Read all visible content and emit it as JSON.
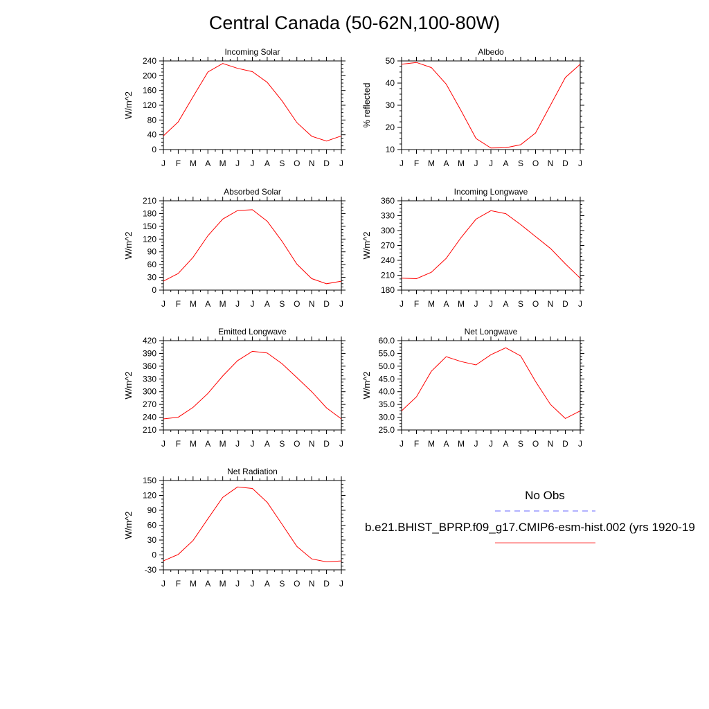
{
  "title": "Central Canada (50-62N,100-80W)",
  "chart_data": [
    {
      "type": "line",
      "title": "Incoming Solar",
      "ylabel": "W/m^2",
      "ylim": [
        0,
        240
      ],
      "yticks": [
        "0",
        "40",
        "80",
        "120",
        "160",
        "200",
        "240"
      ],
      "x": [
        "J",
        "F",
        "M",
        "A",
        "M",
        "J",
        "J",
        "A",
        "S",
        "O",
        "N",
        "D",
        "J"
      ],
      "series": [
        {
          "values": [
            37,
            75,
            143,
            210,
            233,
            220,
            211,
            182,
            132,
            73,
            36,
            23,
            37
          ],
          "color": "#ff0000"
        }
      ]
    },
    {
      "type": "line",
      "title": "Albedo",
      "ylabel": "% reflected",
      "ylim": [
        10,
        50
      ],
      "yticks": [
        "10",
        "20",
        "30",
        "40",
        "50"
      ],
      "x": [
        "J",
        "F",
        "M",
        "A",
        "M",
        "J",
        "J",
        "A",
        "S",
        "O",
        "N",
        "D",
        "J"
      ],
      "series": [
        {
          "values": [
            48.5,
            49.3,
            47.0,
            39.5,
            27.5,
            15.0,
            10.7,
            10.8,
            12.2,
            17.5,
            30.0,
            42.5,
            48.5
          ],
          "color": "#ff0000"
        }
      ]
    },
    {
      "type": "line",
      "title": "Absorbed Solar",
      "ylabel": "W/m^2",
      "ylim": [
        0,
        210
      ],
      "yticks": [
        "0",
        "30",
        "60",
        "90",
        "120",
        "150",
        "180",
        "210"
      ],
      "x": [
        "J",
        "F",
        "M",
        "A",
        "M",
        "J",
        "J",
        "A",
        "S",
        "O",
        "N",
        "D",
        "J"
      ],
      "series": [
        {
          "values": [
            21,
            39,
            77,
            128,
            167,
            187,
            189,
            162,
            115,
            61,
            27,
            15,
            21
          ],
          "color": "#ff0000"
        }
      ]
    },
    {
      "type": "line",
      "title": "Incoming Longwave",
      "ylabel": "W/m^2",
      "ylim": [
        180,
        360
      ],
      "yticks": [
        "180",
        "210",
        "240",
        "270",
        "300",
        "330",
        "360"
      ],
      "x": [
        "J",
        "F",
        "M",
        "A",
        "M",
        "J",
        "J",
        "A",
        "S",
        "O",
        "N",
        "D",
        "J"
      ],
      "series": [
        {
          "values": [
            204,
            203,
            216,
            244,
            286,
            323,
            340,
            334,
            312,
            288,
            264,
            233,
            204
          ],
          "color": "#ff0000"
        }
      ]
    },
    {
      "type": "line",
      "title": "Emitted Longwave",
      "ylabel": "W/m^2",
      "ylim": [
        210,
        420
      ],
      "yticks": [
        "210",
        "240",
        "270",
        "300",
        "330",
        "360",
        "390",
        "420"
      ],
      "x": [
        "J",
        "F",
        "M",
        "A",
        "M",
        "J",
        "J",
        "A",
        "S",
        "O",
        "N",
        "D",
        "J"
      ],
      "series": [
        {
          "values": [
            236,
            240,
            263,
            296,
            337,
            373,
            395,
            391,
            366,
            333,
            300,
            262,
            236
          ],
          "color": "#ff0000"
        }
      ]
    },
    {
      "type": "line",
      "title": "Net Longwave",
      "ylabel": "W/m^2",
      "ylim": [
        25,
        60
      ],
      "yticks": [
        "25.0",
        "30.0",
        "35.0",
        "40.0",
        "45.0",
        "50.0",
        "55.0",
        "60.0"
      ],
      "x": [
        "J",
        "F",
        "M",
        "A",
        "M",
        "J",
        "J",
        "A",
        "S",
        "O",
        "N",
        "D",
        "J"
      ],
      "series": [
        {
          "values": [
            32.5,
            38.0,
            48.0,
            53.7,
            51.8,
            50.5,
            54.5,
            57.2,
            54.0,
            44.0,
            35.0,
            29.5,
            32.5
          ],
          "color": "#ff0000"
        }
      ]
    },
    {
      "type": "line",
      "title": "Net Radiation",
      "ylabel": "W/m^2",
      "ylim": [
        -30,
        150
      ],
      "yticks": [
        "-30",
        "0",
        "30",
        "60",
        "90",
        "120",
        "150"
      ],
      "x": [
        "J",
        "F",
        "M",
        "A",
        "M",
        "J",
        "J",
        "A",
        "S",
        "O",
        "N",
        "D",
        "J"
      ],
      "series": [
        {
          "values": [
            -12,
            1,
            29,
            73,
            116,
            137,
            134,
            106,
            62,
            17,
            -8,
            -14,
            -12
          ],
          "color": "#ff0000"
        }
      ]
    }
  ],
  "legend": {
    "entries": [
      {
        "label": "No Obs",
        "color": "#6666ff",
        "dash": true
      },
      {
        "label": "b.e21.BHIST_BPRP.f09_g17.CMIP6-esm-hist.002 (yrs 1920-19",
        "color": "#ff4444",
        "dash": false
      }
    ]
  }
}
